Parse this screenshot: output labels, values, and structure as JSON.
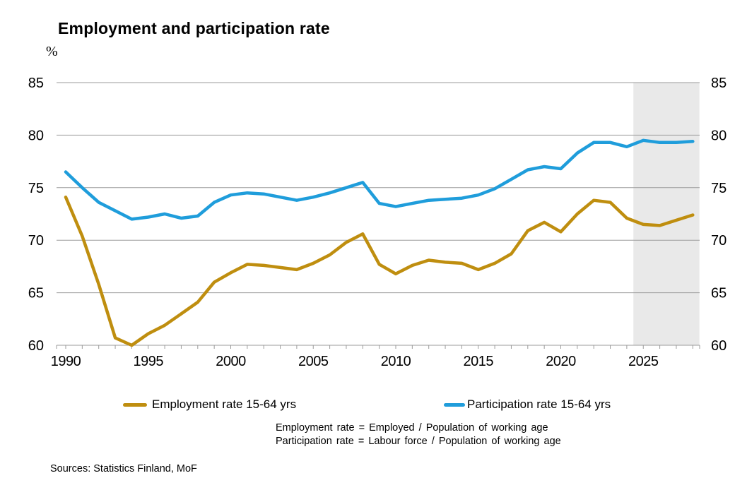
{
  "title": "Employment and participation rate",
  "y_axis_unit": "%",
  "colors": {
    "employment": "#BF8E0F",
    "participation": "#1F9DDB",
    "gridline": "#9B9B9B",
    "forecast_shading": "#E9E9E9",
    "text": "#000000"
  },
  "legend": [
    {
      "label": "Employment rate 15-64 yrs",
      "color": "#BF8E0F"
    },
    {
      "label": "Participation rate 15-64 yrs",
      "color": "#1F9DDB"
    }
  ],
  "footnotes": [
    "Employment rate = Employed / Population of working age",
    "Participation rate = Labour force / Population of working age"
  ],
  "sources": "Sources: Statistics Finland, MoF",
  "chart_data": {
    "type": "line",
    "title": "Employment and participation rate",
    "ylabel": "%",
    "ylim": [
      60,
      85
    ],
    "yticks": [
      60,
      65,
      70,
      75,
      80,
      85
    ],
    "xticks": [
      1990,
      1995,
      2000,
      2005,
      2010,
      2015,
      2020,
      2025
    ],
    "grid": true,
    "legend_position": "bottom",
    "forecast_shading_start": 2024.4,
    "forecast_shading_end": 2028.4,
    "x": [
      1990,
      1991,
      1992,
      1993,
      1994,
      1995,
      1996,
      1997,
      1998,
      1999,
      2000,
      2001,
      2002,
      2003,
      2004,
      2005,
      2006,
      2007,
      2008,
      2009,
      2010,
      2011,
      2012,
      2013,
      2014,
      2015,
      2016,
      2017,
      2018,
      2019,
      2020,
      2021,
      2022,
      2023,
      2024,
      2025,
      2026,
      2027,
      2028
    ],
    "series": [
      {
        "name": "Employment rate 15-64 yrs",
        "color": "#BF8E0F",
        "values": [
          74.1,
          70.4,
          65.8,
          60.7,
          60.0,
          61.1,
          61.9,
          63.0,
          64.1,
          66.0,
          66.9,
          67.7,
          67.6,
          67.4,
          67.2,
          67.8,
          68.6,
          69.8,
          70.6,
          67.7,
          66.8,
          67.6,
          68.1,
          67.9,
          67.8,
          67.2,
          67.8,
          68.7,
          70.9,
          71.7,
          70.8,
          72.5,
          73.8,
          73.6,
          72.1,
          71.5,
          71.4,
          71.9,
          72.4
        ]
      },
      {
        "name": "Participation rate 15-64 yrs",
        "color": "#1F9DDB",
        "values": [
          76.5,
          75.0,
          73.6,
          72.8,
          72.0,
          72.2,
          72.5,
          72.1,
          72.3,
          73.6,
          74.3,
          74.5,
          74.4,
          74.1,
          73.8,
          74.1,
          74.5,
          75.0,
          75.5,
          73.5,
          73.2,
          73.5,
          73.8,
          73.9,
          74.0,
          74.3,
          74.9,
          75.8,
          76.7,
          77.0,
          76.8,
          78.3,
          79.3,
          79.3,
          78.9,
          79.5,
          79.3,
          79.3,
          79.4
        ]
      }
    ]
  }
}
